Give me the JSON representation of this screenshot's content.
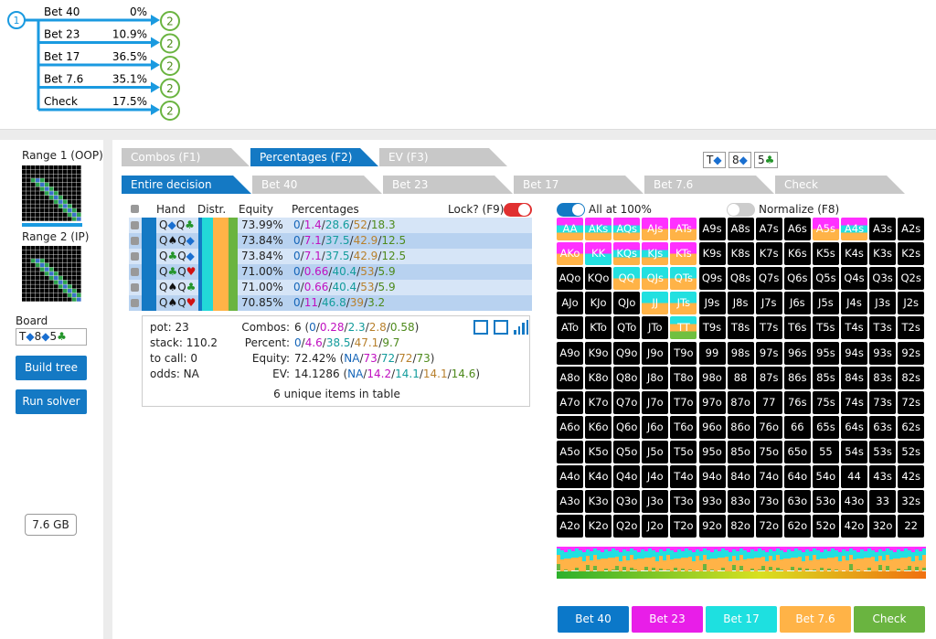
{
  "tree": {
    "root": "1",
    "branches": [
      {
        "label": "Bet 40",
        "pct": "0%",
        "child": "2"
      },
      {
        "label": "Bet 23",
        "pct": "10.9%",
        "child": "2"
      },
      {
        "label": "Bet 17",
        "pct": "36.5%",
        "child": "2"
      },
      {
        "label": "Bet 7.6",
        "pct": "35.1%",
        "child": "2"
      },
      {
        "label": "Check",
        "pct": "17.5%",
        "child": "2"
      }
    ]
  },
  "sidebar": {
    "range1": "Range 1 (OOP)",
    "range2": "Range 2 (IP)",
    "board_label": "Board",
    "board": "T◆8◆5♣",
    "buttons": [
      "Build tree",
      "Run solver"
    ],
    "memory": "7.6 GB"
  },
  "tabs": {
    "views": [
      "Combos (F1)",
      "Percentages (F2)",
      "EV (F3)"
    ],
    "active_view": 1,
    "board_cards": [
      "T◆",
      "8◆",
      "5♣"
    ],
    "actions": [
      "Entire decision",
      "Bet 40",
      "Bet 23",
      "Bet 17",
      "Bet 7.6",
      "Check"
    ],
    "active_action": 0
  },
  "table": {
    "headers": [
      "Hand",
      "Distr.",
      "Equity",
      "Percentages"
    ],
    "lock": "Lock? (F9)",
    "rows": [
      {
        "hand": "Q◆Q♣",
        "equity": "73.99%",
        "percentages": [
          "0",
          "1.4",
          "28.6",
          "52",
          "18.3"
        ]
      },
      {
        "hand": "Q♠Q◆",
        "equity": "73.84%",
        "percentages": [
          "0",
          "7.1",
          "37.5",
          "42.9",
          "12.5"
        ]
      },
      {
        "hand": "Q♣Q◆",
        "equity": "73.84%",
        "percentages": [
          "0",
          "7.1",
          "37.5",
          "42.9",
          "12.5"
        ]
      },
      {
        "hand": "Q♣Q♥",
        "equity": "71.00%",
        "percentages": [
          "0",
          "0.66",
          "40.4",
          "53",
          "5.9"
        ]
      },
      {
        "hand": "Q♠Q♣",
        "equity": "71.00%",
        "percentages": [
          "0",
          "0.66",
          "40.4",
          "53",
          "5.9"
        ]
      },
      {
        "hand": "Q♠Q♥",
        "equity": "70.85%",
        "percentages": [
          "0",
          "11",
          "46.8",
          "39",
          "3.2"
        ]
      }
    ]
  },
  "summary": {
    "pot": "pot: 23",
    "stack": "stack: 110.2",
    "to_call": "to call: 0",
    "odds": "odds: NA",
    "combos": {
      "label": "Combos:",
      "total": "6",
      "parts": [
        "0",
        "0.28",
        "2.3",
        "2.8",
        "0.58"
      ]
    },
    "percent": {
      "label": "Percent:",
      "parts": [
        "0",
        "4.6",
        "38.5",
        "47.1",
        "9.7"
      ]
    },
    "equity": {
      "label": "Equity:",
      "total": "72.42%",
      "parts": [
        "NA",
        "73",
        "72",
        "72",
        "73"
      ]
    },
    "ev": {
      "label": "EV:",
      "total": "14.1286",
      "parts": [
        "NA",
        "14.2",
        "14.1",
        "14.1",
        "14.6"
      ]
    },
    "unique": "6 unique items in table"
  },
  "action_colors": [
    "#1565b8",
    "#c010c0",
    "#139c9c",
    "#b8802c",
    "#4e8a1c"
  ],
  "grid": {
    "all_at": "All at 100%",
    "normalize": "Normalize (F8)",
    "hands": [
      [
        "AA",
        "AKs",
        "AQs",
        "AJs",
        "ATs",
        "A9s",
        "A8s",
        "A7s",
        "A6s",
        "A5s",
        "A4s",
        "A3s",
        "A2s"
      ],
      [
        "AKo",
        "KK",
        "KQs",
        "KJs",
        "KTs",
        "K9s",
        "K8s",
        "K7s",
        "K6s",
        "K5s",
        "K4s",
        "K3s",
        "K2s"
      ],
      [
        "AQo",
        "KQo",
        "QQ",
        "QJs",
        "QTs",
        "Q9s",
        "Q8s",
        "Q7s",
        "Q6s",
        "Q5s",
        "Q4s",
        "Q3s",
        "Q2s"
      ],
      [
        "AJo",
        "KJo",
        "QJo",
        "JJ",
        "JTs",
        "J9s",
        "J8s",
        "J7s",
        "J6s",
        "J5s",
        "J4s",
        "J3s",
        "J2s"
      ],
      [
        "ATo",
        "KTo",
        "QTo",
        "JTo",
        "TT",
        "T9s",
        "T8s",
        "T7s",
        "T6s",
        "T5s",
        "T4s",
        "T3s",
        "T2s"
      ],
      [
        "A9o",
        "K9o",
        "Q9o",
        "J9o",
        "T9o",
        "99",
        "98s",
        "97s",
        "96s",
        "95s",
        "94s",
        "93s",
        "92s"
      ],
      [
        "A8o",
        "K8o",
        "Q8o",
        "J8o",
        "T8o",
        "98o",
        "88",
        "87s",
        "86s",
        "85s",
        "84s",
        "83s",
        "82s"
      ],
      [
        "A7o",
        "K7o",
        "Q7o",
        "J7o",
        "T7o",
        "97o",
        "87o",
        "77",
        "76s",
        "75s",
        "74s",
        "73s",
        "72s"
      ],
      [
        "A6o",
        "K6o",
        "Q6o",
        "J6o",
        "T6o",
        "96o",
        "86o",
        "76o",
        "66",
        "65s",
        "64s",
        "63s",
        "62s"
      ],
      [
        "A5o",
        "K5o",
        "Q5o",
        "J5o",
        "T5o",
        "95o",
        "85o",
        "75o",
        "65o",
        "55",
        "54s",
        "53s",
        "52s"
      ],
      [
        "A4o",
        "K4o",
        "Q4o",
        "J4o",
        "T4o",
        "94o",
        "84o",
        "74o",
        "64o",
        "54o",
        "44",
        "43s",
        "42s"
      ],
      [
        "A3o",
        "K3o",
        "Q3o",
        "J3o",
        "T3o",
        "93o",
        "83o",
        "73o",
        "63o",
        "53o",
        "43o",
        "33",
        "32s"
      ],
      [
        "A2o",
        "K2o",
        "Q2o",
        "J2o",
        "T2o",
        "92o",
        "82o",
        "72o",
        "62o",
        "52o",
        "42o",
        "32o",
        "22"
      ]
    ],
    "highlight": {
      "AA": [
        "#ff30ff",
        "#22e0e0",
        "#ffb347"
      ],
      "AKs": [
        "#ff30ff",
        "#22e0e0",
        "#ffb347"
      ],
      "AQs": [
        "#ff30ff",
        "#22e0e0",
        "#ffb347"
      ],
      "AJs": [
        "#ff30ff",
        "#ffb347"
      ],
      "ATs": [
        "#ff30ff",
        "#ffb347"
      ],
      "A5s": [
        "#ff30ff",
        "#ffb347"
      ],
      "A4s": [
        "#ff30ff",
        "#22e0e0",
        "#ffb347"
      ],
      "AKo": [
        "#ff30ff",
        "#ffb347"
      ],
      "KK": [
        "#ff30ff",
        "#22e0e0"
      ],
      "KQs": [
        "#ff30ff",
        "#22e0e0",
        "#ffb347"
      ],
      "KJs": [
        "#ff30ff",
        "#22e0e0",
        "#ffb347"
      ],
      "KTs": [
        "#ff30ff",
        "#ffb347"
      ],
      "QQ": [
        "#22e0e0",
        "#ffb347"
      ],
      "QJs": [
        "#22e0e0",
        "#ffb347"
      ],
      "QTs": [
        "#22e0e0",
        "#ffb347"
      ],
      "JJ": [
        "#22e0e0",
        "#ffb347"
      ],
      "JTs": [
        "#22e0e0",
        "#ffb347"
      ],
      "TT": [
        "#22e0e0",
        "#ffb347",
        "#70c040"
      ]
    }
  },
  "action_buttons": [
    {
      "label": "Bet 40",
      "color": "#0b78c9"
    },
    {
      "label": "Bet 23",
      "color": "#e81ee8"
    },
    {
      "label": "Bet 17",
      "color": "#1ee0e0"
    },
    {
      "label": "Bet 7.6",
      "color": "#ffb347"
    },
    {
      "label": "Check",
      "color": "#6ab440"
    }
  ]
}
